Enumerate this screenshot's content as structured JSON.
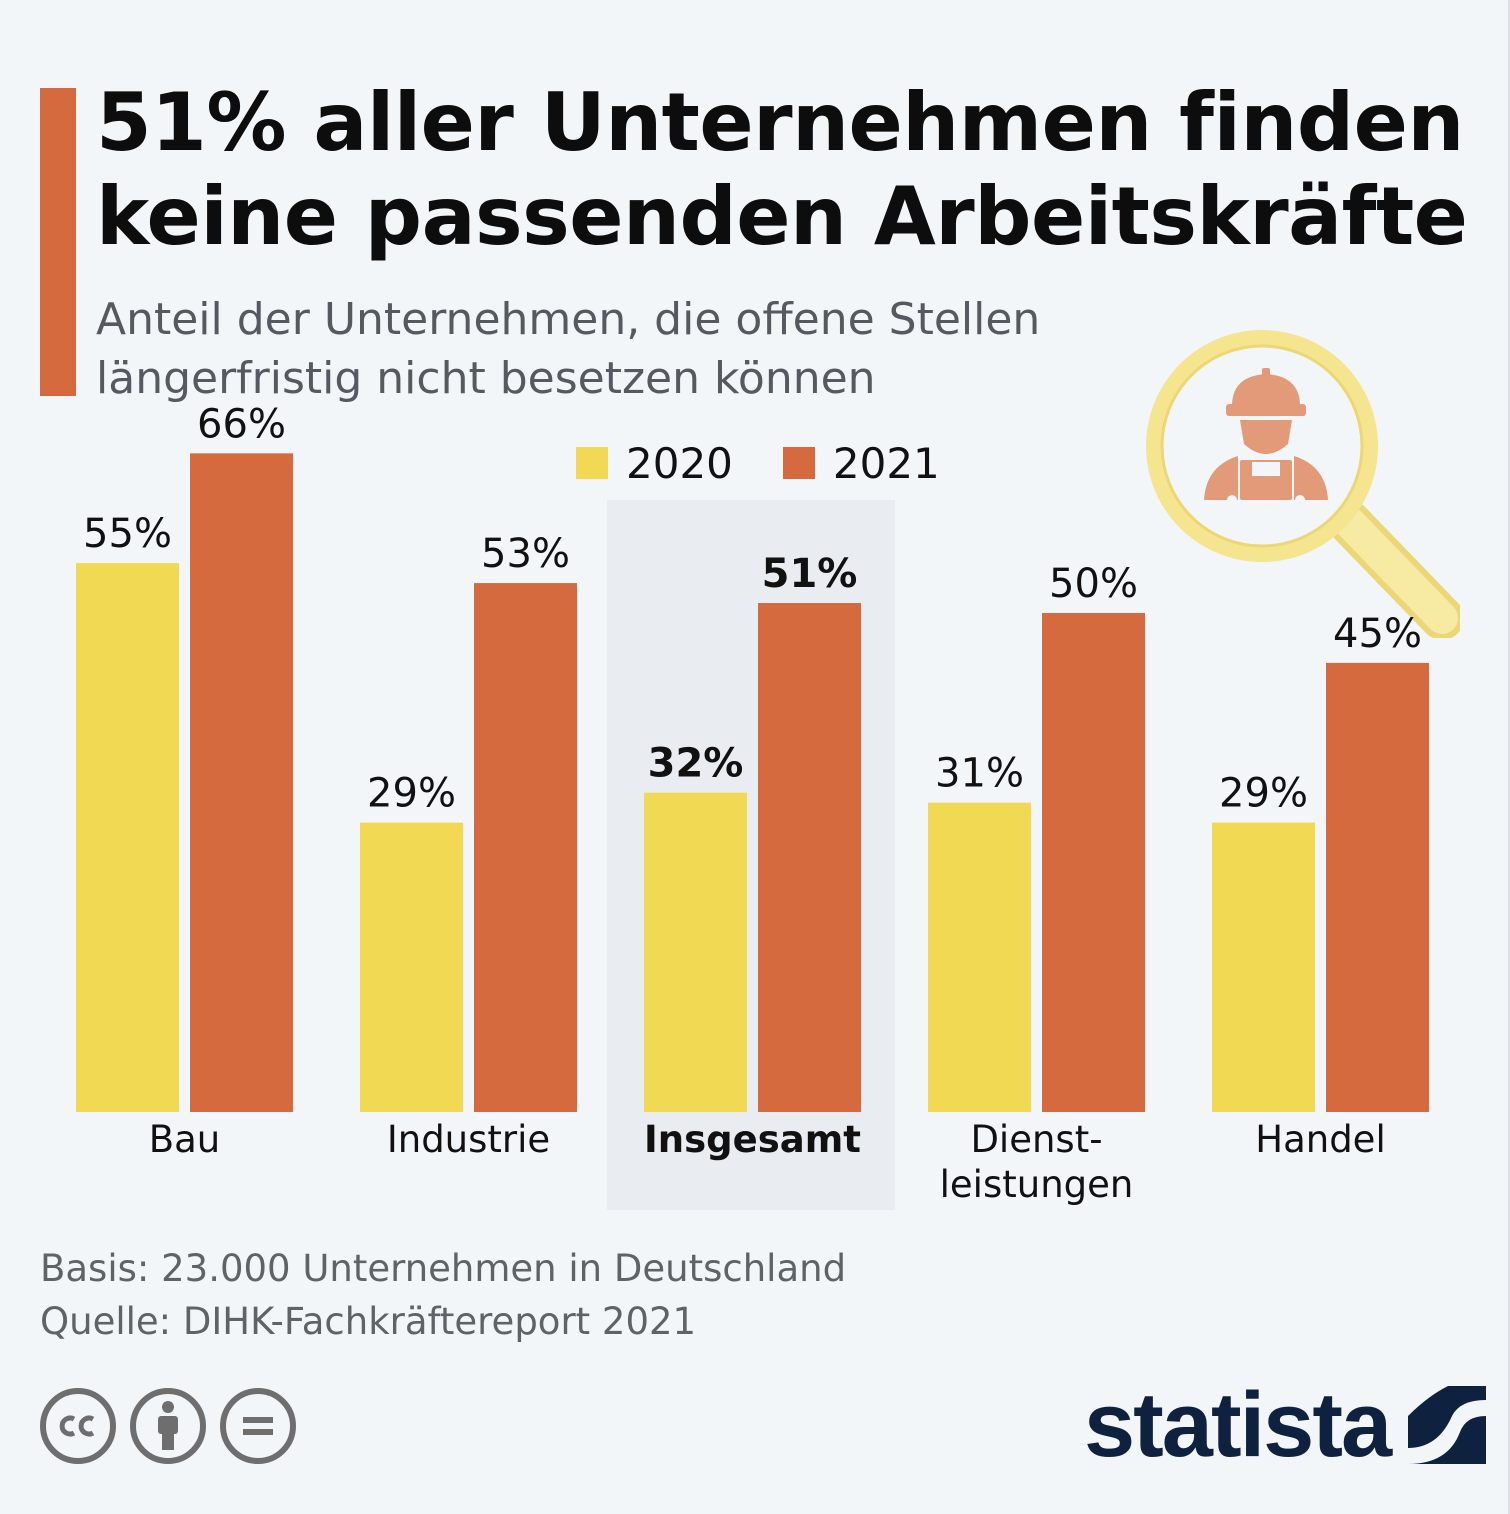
{
  "header": {
    "title_lines": [
      "51% aller Unternehmen finden",
      "keine passenden Arbeitskräfte"
    ],
    "subtitle_lines": [
      "Anteil der Unternehmen, die offene Stellen",
      "längerfristig nicht besetzen können"
    ]
  },
  "colors": {
    "accent": "#d56a3e",
    "series_2020": "#f1d954",
    "series_2021": "#d56a3e",
    "highlight_bg": "#e9edf2",
    "logo": "#0e2240",
    "magnifier": "#f5e27a",
    "worker_icon": "#e39a78"
  },
  "chart_data": {
    "type": "bar",
    "categories": [
      {
        "lines": [
          "Bau"
        ],
        "bold": false
      },
      {
        "lines": [
          "Industrie"
        ],
        "bold": false
      },
      {
        "lines": [
          "Insgesamt"
        ],
        "bold": true,
        "highlight": true
      },
      {
        "lines": [
          "Dienst-",
          "leistungen"
        ],
        "bold": false
      },
      {
        "lines": [
          "Handel"
        ],
        "bold": false
      }
    ],
    "series": [
      {
        "name": "2020",
        "values": [
          55,
          29,
          32,
          31,
          29
        ],
        "labels": [
          "55%",
          "29%",
          "32%",
          "31%",
          "29%"
        ]
      },
      {
        "name": "2021",
        "values": [
          66,
          53,
          51,
          50,
          45
        ],
        "labels": [
          "66%",
          "53%",
          "51%",
          "50%",
          "45%"
        ]
      }
    ],
    "unit": "%",
    "ylim": [
      0,
      100
    ],
    "legend_position": "top-center",
    "grid": false
  },
  "legend": {
    "items": [
      "2020",
      "2021"
    ]
  },
  "footer": {
    "basis": "Basis: 23.000 Unternehmen in Deutschland",
    "source": "Quelle: DIHK-Fachkräftereport 2021",
    "license_icons": [
      "cc-icon",
      "attribution-icon",
      "no-derivatives-icon"
    ],
    "logo_text": "statista",
    "logo_icon": "statista-logo-icon"
  }
}
